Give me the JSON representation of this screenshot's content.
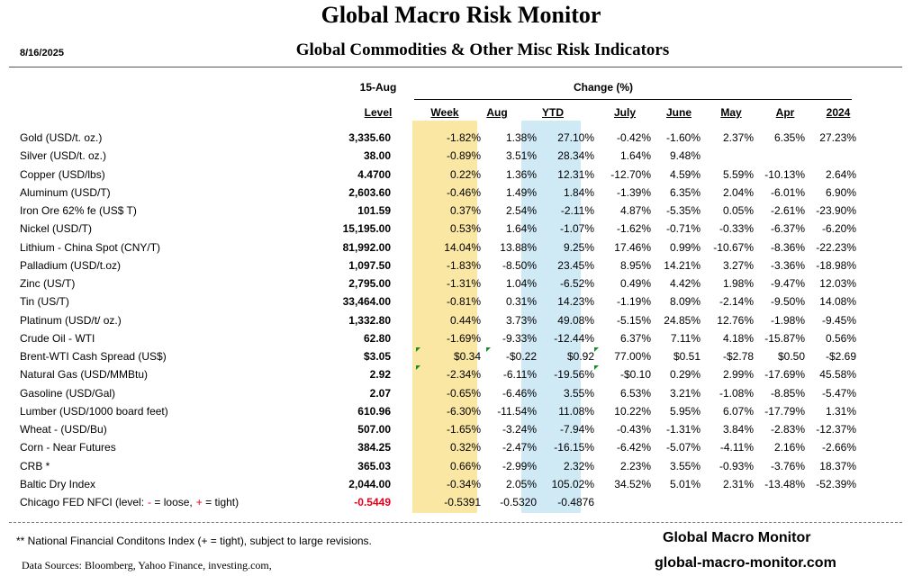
{
  "title": "Global Macro Risk Monitor",
  "date": "8/16/2025",
  "subtitle": "Global Commodities & Other Misc Risk Indicators",
  "header": {
    "level_date": "15-Aug",
    "change_label": "Change (%)",
    "columns": [
      "Level",
      "Week",
      "Aug",
      "YTD",
      "July",
      "June",
      "May",
      "Apr",
      "2024"
    ]
  },
  "rows": [
    {
      "name": "Gold (USD/t. oz.)",
      "level": "3,335.60",
      "week": "-1.82%",
      "aug": "1.38%",
      "ytd": "27.10%",
      "july": "-0.42%",
      "june": "-1.60%",
      "may": "2.37%",
      "apr": "6.35%",
      "y2024": "27.23%"
    },
    {
      "name": "Silver (USD/t. oz.)",
      "level": "38.00",
      "week": "-0.89%",
      "aug": "3.51%",
      "ytd": "28.34%",
      "july": "1.64%",
      "june": "9.48%",
      "may": "",
      "apr": "",
      "y2024": ""
    },
    {
      "name": "Copper (USD/lbs)",
      "level": "4.4700",
      "week": "0.22%",
      "aug": "1.36%",
      "ytd": "12.31%",
      "july": "-12.70%",
      "june": "4.59%",
      "may": "5.59%",
      "apr": "-10.13%",
      "y2024": "2.64%"
    },
    {
      "name": "Aluminum (USD/T)",
      "level": "2,603.60",
      "week": "-0.46%",
      "aug": "1.49%",
      "ytd": "1.84%",
      "july": "-1.39%",
      "june": "6.35%",
      "may": "2.04%",
      "apr": "-6.01%",
      "y2024": "6.90%"
    },
    {
      "name": "Iron Ore 62% fe (US$ T)",
      "level": "101.59",
      "week": "0.37%",
      "aug": "2.54%",
      "ytd": "-2.11%",
      "july": "4.87%",
      "june": "-5.35%",
      "may": "0.05%",
      "apr": "-2.61%",
      "y2024": "-23.90%"
    },
    {
      "name": "Nickel (USD/T)",
      "level": "15,195.00",
      "week": "0.53%",
      "aug": "1.64%",
      "ytd": "-1.07%",
      "july": "-1.62%",
      "june": "-0.71%",
      "may": "-0.33%",
      "apr": "-6.37%",
      "y2024": "-6.20%"
    },
    {
      "name": "Lithium - China Spot (CNY/T)",
      "level": "81,992.00",
      "week": "14.04%",
      "aug": "13.88%",
      "ytd": "9.25%",
      "july": "17.46%",
      "june": "0.99%",
      "may": "-10.67%",
      "apr": "-8.36%",
      "y2024": "-22.23%"
    },
    {
      "name": "Palladium (USD/t.oz)",
      "level": "1,097.50",
      "week": "-1.83%",
      "aug": "-8.50%",
      "ytd": "23.45%",
      "july": "8.95%",
      "june": "14.21%",
      "may": "3.27%",
      "apr": "-3.36%",
      "y2024": "-18.98%"
    },
    {
      "name": "Zinc (US/T)",
      "level": "2,795.00",
      "week": "-1.31%",
      "aug": "1.04%",
      "ytd": "-6.52%",
      "july": "0.49%",
      "june": "4.42%",
      "may": "1.98%",
      "apr": "-9.47%",
      "y2024": "12.03%"
    },
    {
      "name": "Tin (US/T)",
      "level": "33,464.00",
      "week": "-0.81%",
      "aug": "0.31%",
      "ytd": "14.23%",
      "july": "-1.19%",
      "june": "8.09%",
      "may": "-2.14%",
      "apr": "-9.50%",
      "y2024": "14.08%"
    },
    {
      "name": "Platinum (USD/t/ oz.)",
      "level": "1,332.80",
      "week": "0.44%",
      "aug": "3.73%",
      "ytd": "49.08%",
      "july": "-5.15%",
      "june": "24.85%",
      "may": "12.76%",
      "apr": "-1.98%",
      "y2024": "-9.45%"
    },
    {
      "name": "Crude Oil - WTI",
      "level": "62.80",
      "week": "-1.69%",
      "aug": "-9.33%",
      "ytd": "-12.44%",
      "july": "6.37%",
      "june": "7.11%",
      "may": "4.18%",
      "apr": "-15.87%",
      "y2024": "0.56%"
    },
    {
      "name": "Brent-WTI Cash Spread (US$)",
      "level": "$3.05",
      "week": "$0.34",
      "aug": "-$0.22",
      "ytd": "$0.92",
      "july": "77.00%",
      "june": "$0.51",
      "may": "-$2.78",
      "apr": "$0.50",
      "y2024": "-$2.69"
    },
    {
      "name": "Natural Gas (USD/MMBtu)",
      "level": "2.92",
      "week": "-2.34%",
      "aug": "-6.11%",
      "ytd": "-19.56%",
      "july": "-$0.10",
      "june": "0.29%",
      "may": "2.99%",
      "apr": "-17.69%",
      "y2024": "45.58%"
    },
    {
      "name": "Gasoline (USD/Gal)",
      "level": "2.07",
      "week": "-0.65%",
      "aug": "-6.46%",
      "ytd": "3.55%",
      "july": "6.53%",
      "june": "3.21%",
      "may": "-1.08%",
      "apr": "-8.85%",
      "y2024": "-5.47%"
    },
    {
      "name": "Lumber (USD/1000 board feet)",
      "level": "610.96",
      "week": "-6.30%",
      "aug": "-11.54%",
      "ytd": "11.08%",
      "july": "10.22%",
      "june": "5.95%",
      "may": "6.07%",
      "apr": "-17.79%",
      "y2024": "1.31%"
    },
    {
      "name": "Wheat - (USD/Bu)",
      "level": "507.00",
      "week": "-1.65%",
      "aug": "-3.24%",
      "ytd": "-7.94%",
      "july": "-0.43%",
      "june": "-1.31%",
      "may": "3.84%",
      "apr": "-2.83%",
      "y2024": "-12.37%"
    },
    {
      "name": "Corn - Near Futures",
      "level": "384.25",
      "week": "0.32%",
      "aug": "-2.47%",
      "ytd": "-16.15%",
      "july": "-6.42%",
      "june": "-5.07%",
      "may": "-4.11%",
      "apr": "2.16%",
      "y2024": "-2.66%"
    },
    {
      "name": "CRB *",
      "level": "365.03",
      "week": "0.66%",
      "aug": "-2.99%",
      "ytd": "2.32%",
      "july": "2.23%",
      "june": "3.55%",
      "may": "-0.93%",
      "apr": "-3.76%",
      "y2024": "18.37%"
    },
    {
      "name": "Baltic Dry Index",
      "level": "2,044.00",
      "week": "-0.34%",
      "aug": "2.05%",
      "ytd": "105.02%",
      "july": "34.52%",
      "june": "5.01%",
      "may": "2.31%",
      "apr": "-13.48%",
      "y2024": "-52.39%"
    },
    {
      "name": "Chicago FED NFCI (level:",
      "name_red1": "-",
      "name_mid1": " = loose,",
      "name_red2": "+",
      "name_tail": " = tight)",
      "level": "-0.5449",
      "week": "-0.5391",
      "aug": "-0.5320",
      "ytd": "-0.4876",
      "july": "",
      "june": "",
      "may": "",
      "apr": "",
      "y2024": ""
    }
  ],
  "footnote": "** National Financial Conditons Index (+ =  tight), subject to large revisions.",
  "sources": "Data Sources:  Bloomberg,  Yahoo Finance, investing.com,",
  "brand": "Global Macro Monitor",
  "website": "global-macro-monitor.com",
  "colors": {
    "week_highlight": "#fbe7a4",
    "ytd_highlight": "#cfe9f5",
    "negative_level": "#e0001a",
    "marker": "#1a8a2e"
  }
}
